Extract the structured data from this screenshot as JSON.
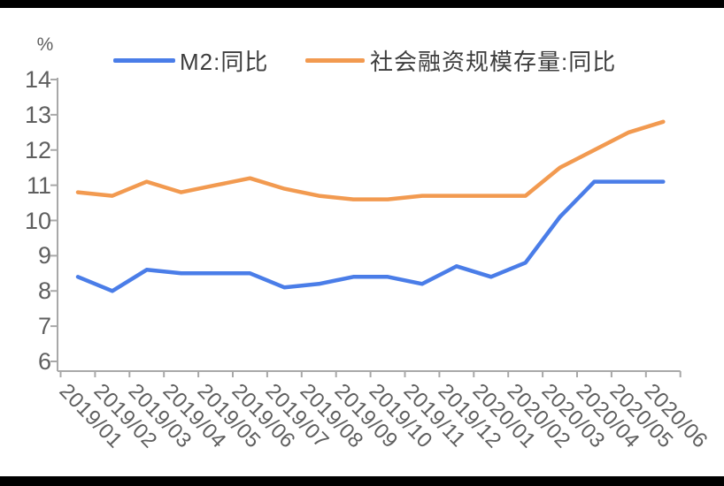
{
  "page": {
    "background": "#ffffff",
    "top_bar_color": "#000000",
    "bottom_bar_color": "#000000"
  },
  "chart_data": {
    "type": "line",
    "title": "",
    "ylabel": "%",
    "xlabel": "",
    "ylim": [
      6,
      14
    ],
    "y_ticks": [
      6,
      7,
      8,
      9,
      10,
      11,
      12,
      13,
      14
    ],
    "grid": false,
    "legend_position": "top",
    "axis_color": "#a8a8a8",
    "label_color": "#5f5f5f",
    "categories": [
      "2019/01",
      "2019/02",
      "2019/03",
      "2019/04",
      "2019/05",
      "2019/06",
      "2019/07",
      "2019/08",
      "2019/09",
      "2019/10",
      "2019/11",
      "2019/12",
      "2020/01",
      "2020/02",
      "2020/03",
      "2020/04",
      "2020/05",
      "2020/06"
    ],
    "series": [
      {
        "name": "M2:同比",
        "color": "#4a7de8",
        "values": [
          8.4,
          8.0,
          8.6,
          8.5,
          8.5,
          8.5,
          8.1,
          8.2,
          8.4,
          8.4,
          8.2,
          8.7,
          8.4,
          8.8,
          10.1,
          11.1,
          11.1,
          11.1
        ]
      },
      {
        "name": "社会融资规模存量:同比",
        "color": "#f29a50",
        "values": [
          10.8,
          10.7,
          11.1,
          10.8,
          11.0,
          11.2,
          10.9,
          10.7,
          10.6,
          10.6,
          10.7,
          10.7,
          10.7,
          10.7,
          11.5,
          12.0,
          12.5,
          12.8
        ]
      }
    ]
  }
}
